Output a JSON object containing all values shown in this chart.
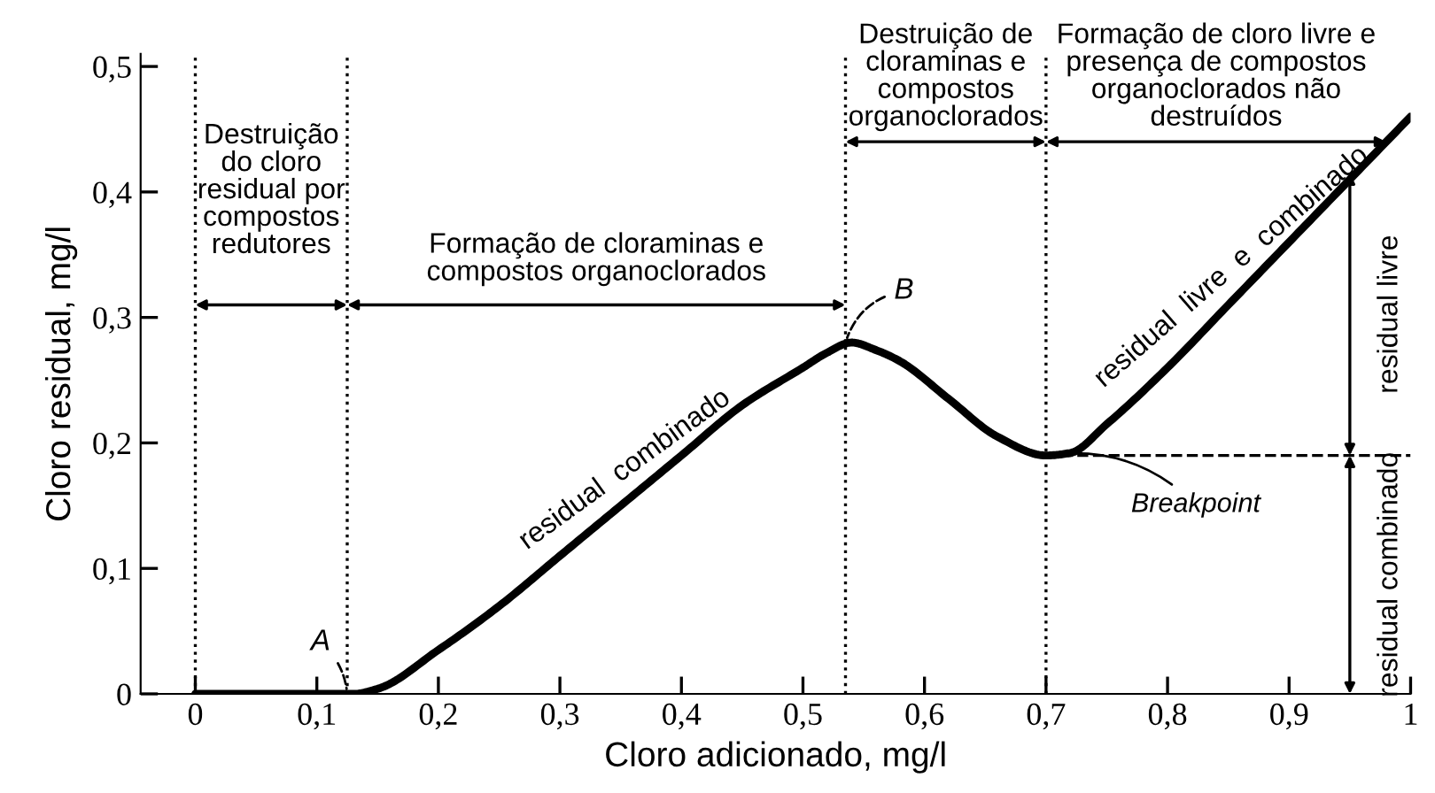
{
  "chart_data": {
    "type": "line",
    "xlabel": "Cloro adicionado, mg/l",
    "ylabel": "Cloro residual, mg/l",
    "x": [
      0,
      0.13,
      0.15,
      0.2,
      0.25,
      0.3,
      0.35,
      0.4,
      0.45,
      0.5,
      0.52,
      0.54,
      0.56,
      0.58,
      0.62,
      0.66,
      0.7,
      0.72,
      0.75,
      0.8,
      0.85,
      0.9,
      0.95,
      1.0
    ],
    "series": [
      {
        "color": "#000000",
        "values": [
          0,
          0,
          0.004,
          0.035,
          0.07,
          0.11,
          0.15,
          0.19,
          0.23,
          0.26,
          0.272,
          0.28,
          0.274,
          0.265,
          0.235,
          0.205,
          0.19,
          0.192,
          0.215,
          0.26,
          0.31,
          0.36,
          0.41,
          0.46
        ]
      }
    ],
    "xlim": [
      -0.045,
      1.0
    ],
    "ylim": [
      0,
      0.51
    ],
    "xticks": [
      0,
      {
        "value": 0.1,
        "label": "0,1"
      },
      {
        "value": 0.2,
        "label": "0,2"
      },
      {
        "value": 0.3,
        "label": "0,3"
      },
      {
        "value": 0.4,
        "label": "0,4"
      },
      {
        "value": 0.5,
        "label": "0,5"
      },
      {
        "value": 0.6,
        "label": "0,6"
      },
      {
        "value": 0.7,
        "label": "0,7"
      },
      {
        "value": 0.8,
        "label": "0,8"
      },
      {
        "value": 0.9,
        "label": "0,9"
      },
      1
    ],
    "yticks": [
      0,
      {
        "value": 0.1,
        "label": "0,1"
      },
      {
        "value": 0.2,
        "label": "0,2"
      },
      {
        "value": 0.3,
        "label": "0,3"
      },
      {
        "value": 0.4,
        "label": "0,4"
      },
      {
        "value": 0.5,
        "label": "0,5"
      }
    ],
    "grid": false,
    "legend": false,
    "marker": "none",
    "line_style": "solid",
    "ref_lines": [
      {
        "axis": "x",
        "value": 0,
        "line_style": "dotted",
        "color": "#000000"
      },
      {
        "axis": "x",
        "value": 0.125,
        "line_style": "dotted",
        "color": "#000000"
      },
      {
        "axis": "x",
        "value": 0.535,
        "line_style": "dotted",
        "color": "#000000"
      },
      {
        "axis": "x",
        "value": 0.7,
        "line_style": "dotted",
        "color": "#000000"
      },
      {
        "axis": "y",
        "value": 0.19,
        "line_style": "dashed",
        "color": "#000000"
      }
    ],
    "annotations": [
      "Destruição\ndo cloro\nresidual por\ncompostos\nredutores",
      "Formação de cloraminas e\ncompostos organoclorados",
      "Destruição de\ncloraminas e\ncompostos\norganoclorados",
      "Formação de cloro livre e\npresença de compostos\norganoclorados não\ndestruídos",
      {
        "text": "A",
        "x": 0.125,
        "y": 0
      },
      {
        "text": "B",
        "x": 0.535,
        "y": 0.28
      },
      {
        "text": "Breakpoint",
        "x": 0.7,
        "y": 0.19
      },
      {
        "text": "residual  combinado",
        "x": 0.36,
        "y": 0.158
      },
      {
        "text": "residual  livre  e  combinado",
        "x": 0.86,
        "y": 0.32
      },
      "residual livre",
      "residual combinado"
    ]
  }
}
